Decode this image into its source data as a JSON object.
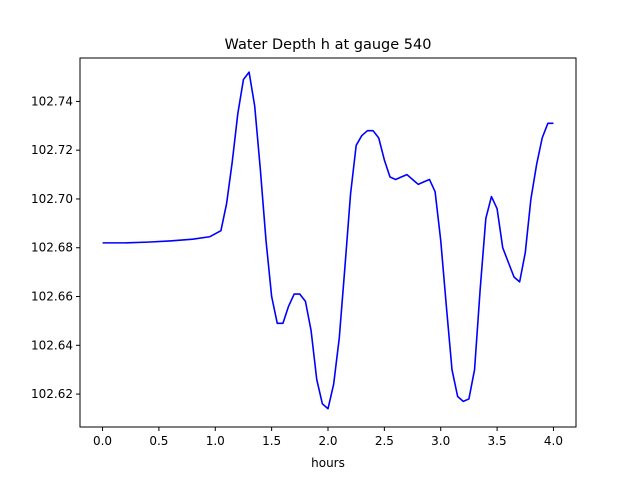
{
  "chart_data": {
    "type": "line",
    "title": "Water Depth h at gauge 540",
    "xlabel": "hours",
    "ylabel": "",
    "xlim": [
      -0.2,
      4.2
    ],
    "ylim": [
      102.6065,
      102.7578
    ],
    "grid": false,
    "xticks": [
      0.0,
      0.5,
      1.0,
      1.5,
      2.0,
      2.5,
      3.0,
      3.5,
      4.0
    ],
    "xtick_labels": [
      "0.0",
      "0.5",
      "1.0",
      "1.5",
      "2.0",
      "2.5",
      "3.0",
      "3.5",
      "4.0"
    ],
    "yticks": [
      102.62,
      102.64,
      102.66,
      102.68,
      102.7,
      102.72,
      102.74
    ],
    "ytick_labels": [
      "102.62",
      "102.64",
      "102.66",
      "102.68",
      "102.70",
      "102.72",
      "102.74"
    ],
    "series": [
      {
        "color": "#0000ff",
        "x": [
          0.0,
          0.2,
          0.4,
          0.6,
          0.8,
          0.95,
          1.05,
          1.1,
          1.15,
          1.2,
          1.25,
          1.3,
          1.35,
          1.4,
          1.45,
          1.5,
          1.55,
          1.6,
          1.65,
          1.7,
          1.75,
          1.8,
          1.85,
          1.9,
          1.95,
          2.0,
          2.05,
          2.1,
          2.15,
          2.2,
          2.25,
          2.3,
          2.35,
          2.4,
          2.45,
          2.5,
          2.55,
          2.6,
          2.65,
          2.7,
          2.75,
          2.8,
          2.85,
          2.9,
          2.95,
          3.0,
          3.05,
          3.1,
          3.15,
          3.2,
          3.25,
          3.3,
          3.35,
          3.4,
          3.45,
          3.5,
          3.55,
          3.6,
          3.65,
          3.7,
          3.75,
          3.8,
          3.85,
          3.9,
          3.95,
          4.0
        ],
        "y": [
          102.682,
          102.682,
          102.6823,
          102.6828,
          102.6835,
          102.6845,
          102.687,
          102.698,
          102.715,
          102.735,
          102.749,
          102.752,
          102.738,
          102.712,
          102.683,
          102.66,
          102.649,
          102.649,
          102.656,
          102.661,
          102.661,
          102.658,
          102.646,
          102.626,
          102.616,
          102.614,
          102.624,
          102.643,
          102.672,
          102.702,
          102.722,
          102.726,
          102.728,
          102.728,
          102.725,
          102.716,
          102.709,
          102.708,
          102.709,
          102.71,
          102.708,
          102.706,
          102.707,
          102.708,
          102.703,
          102.683,
          102.656,
          102.63,
          102.619,
          102.617,
          102.618,
          102.63,
          102.663,
          102.692,
          102.701,
          102.696,
          102.68,
          102.674,
          102.668,
          102.666,
          102.678,
          102.7,
          102.714,
          102.725,
          102.731,
          102.731
        ]
      }
    ]
  }
}
